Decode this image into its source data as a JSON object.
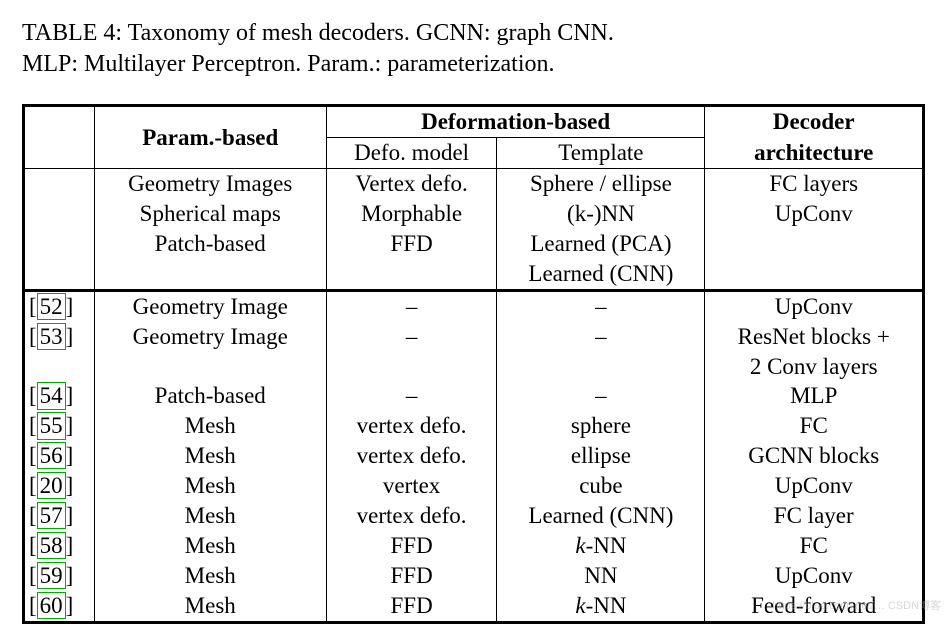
{
  "caption": {
    "line1": "TABLE 4: Taxonomy of mesh decoders. GCNN: graph CNN.",
    "line2": "MLP: Multilayer Perceptron. Param.: parameterization."
  },
  "table": {
    "type": "table",
    "background_color": "#ffffff",
    "border_color": "#000000",
    "ref_border_color": "#00aa00",
    "font_family": "Palatino",
    "header": {
      "param_based": "Param.-based",
      "deformation_based": "Deformation-based",
      "defo_model": "Defo. model",
      "template": "Template",
      "decoder_arch": "Decoder",
      "decoder_arch2": "architecture"
    },
    "header_values": {
      "param_based": [
        "Geometry Images",
        "Spherical maps",
        "Patch-based"
      ],
      "defo_model": [
        "Vertex defo.",
        "Morphable",
        "FFD"
      ],
      "template": [
        "Sphere / ellipse",
        "(k-)NN",
        "Learned (PCA)",
        "Learned (CNN)"
      ],
      "decoder_arch": [
        "FC layers",
        "UpConv"
      ]
    },
    "rows": [
      {
        "ref": "52",
        "param": "Geometry Image",
        "defo": "–",
        "template": "–",
        "arch": "UpConv"
      },
      {
        "ref": "53",
        "param": "Geometry Image",
        "defo": "–",
        "template": "–",
        "arch": "ResNet blocks +\n2 Conv layers"
      },
      {
        "ref": "54",
        "param": "Patch-based",
        "defo": "–",
        "template": "–",
        "arch": "MLP"
      },
      {
        "ref": "55",
        "param": "Mesh",
        "defo": "vertex defo.",
        "template": "sphere",
        "arch": "FC"
      },
      {
        "ref": "56",
        "param": "Mesh",
        "defo": "vertex defo.",
        "template": "ellipse",
        "arch": "GCNN blocks"
      },
      {
        "ref": "20",
        "param": "Mesh",
        "defo": "vertex",
        "template": "cube",
        "arch": "UpConv"
      },
      {
        "ref": "57",
        "param": "Mesh",
        "defo": "vertex defo.",
        "template": "Learned (CNN)",
        "arch": "FC layer"
      },
      {
        "ref": "58",
        "param": "Mesh",
        "defo": "FFD",
        "template": "k-NN",
        "arch": "FC",
        "italic_k": true
      },
      {
        "ref": "59",
        "param": "Mesh",
        "defo": "FFD",
        "template": "NN",
        "arch": "UpConv"
      },
      {
        "ref": "60",
        "param": "Mesh",
        "defo": "FFD",
        "template": "k-NN",
        "arch": "Feed-forward",
        "italic_k": true
      }
    ]
  },
  "watermark": "https://blog.csdn.net/… CSDN博客"
}
